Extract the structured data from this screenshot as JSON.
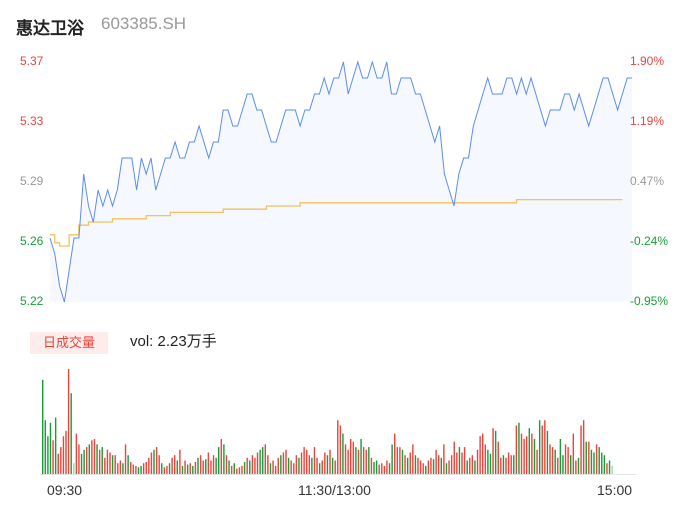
{
  "header": {
    "name": "惠达卫浴",
    "code": "603385.SH"
  },
  "colors": {
    "up": "#e8453c",
    "down": "#1a9c3a",
    "flat": "#999999",
    "price_line": "#5b8def",
    "avg_line": "#f5c15c"
  },
  "chart_data": {
    "type": "line",
    "price_axis": {
      "ticks": [
        "5.37",
        "5.33",
        "5.29",
        "5.26",
        "5.22"
      ],
      "range": [
        5.22,
        5.37
      ]
    },
    "pct_axis": {
      "ticks": [
        "1.90%",
        "1.19%",
        "0.47%",
        "-0.24%",
        "-0.95%"
      ]
    },
    "time_labels": [
      "09:30",
      "11:30/13:00",
      "15:00"
    ],
    "price_series": [
      5.26,
      5.25,
      5.23,
      5.22,
      5.24,
      5.26,
      5.26,
      5.3,
      5.28,
      5.27,
      5.29,
      5.28,
      5.29,
      5.28,
      5.29,
      5.31,
      5.31,
      5.31,
      5.29,
      5.31,
      5.3,
      5.31,
      5.29,
      5.3,
      5.31,
      5.31,
      5.32,
      5.31,
      5.31,
      5.32,
      5.32,
      5.33,
      5.32,
      5.31,
      5.32,
      5.32,
      5.34,
      5.34,
      5.33,
      5.33,
      5.34,
      5.35,
      5.35,
      5.34,
      5.34,
      5.33,
      5.32,
      5.32,
      5.33,
      5.34,
      5.34,
      5.34,
      5.33,
      5.34,
      5.34,
      5.35,
      5.35,
      5.36,
      5.35,
      5.36,
      5.36,
      5.37,
      5.35,
      5.36,
      5.37,
      5.36,
      5.36,
      5.37,
      5.36,
      5.36,
      5.37,
      5.35,
      5.35,
      5.36,
      5.36,
      5.36,
      5.35,
      5.35,
      5.34,
      5.33,
      5.32,
      5.33,
      5.3,
      5.29,
      5.28,
      5.3,
      5.31,
      5.31,
      5.33,
      5.34,
      5.35,
      5.36,
      5.35,
      5.35,
      5.35,
      5.36,
      5.36,
      5.35,
      5.36,
      5.35,
      5.36,
      5.35,
      5.34,
      5.33,
      5.34,
      5.34,
      5.34,
      5.35,
      5.35,
      5.34,
      5.35,
      5.34,
      5.33,
      5.34,
      5.35,
      5.36,
      5.36,
      5.35,
      5.34,
      5.35,
      5.36,
      5.36
    ],
    "avg_series": [
      5.262,
      5.257,
      5.255,
      5.255,
      5.262,
      5.262,
      5.268,
      5.268,
      5.27,
      5.27,
      5.27,
      5.27,
      5.27,
      5.272,
      5.272,
      5.272,
      5.272,
      5.272,
      5.272,
      5.272,
      5.274,
      5.274,
      5.274,
      5.274,
      5.274,
      5.276,
      5.276,
      5.276,
      5.276,
      5.276,
      5.276,
      5.276,
      5.276,
      5.276,
      5.276,
      5.276,
      5.278,
      5.278,
      5.278,
      5.278,
      5.278,
      5.278,
      5.278,
      5.278,
      5.278,
      5.28,
      5.28,
      5.28,
      5.28,
      5.28,
      5.28,
      5.28,
      5.282,
      5.282,
      5.282,
      5.282,
      5.282,
      5.282,
      5.282,
      5.282,
      5.282,
      5.282,
      5.282,
      5.282,
      5.282,
      5.282,
      5.282,
      5.282,
      5.282,
      5.282,
      5.282,
      5.282,
      5.282,
      5.282,
      5.282,
      5.282,
      5.282,
      5.282,
      5.282,
      5.282,
      5.282,
      5.282,
      5.282,
      5.282,
      5.282,
      5.282,
      5.282,
      5.282,
      5.282,
      5.282,
      5.282,
      5.282,
      5.282,
      5.282,
      5.282,
      5.282,
      5.282,
      5.284,
      5.284,
      5.284,
      5.284,
      5.284,
      5.284,
      5.284,
      5.284,
      5.284,
      5.284,
      5.284,
      5.284,
      5.284,
      5.284,
      5.284,
      5.284,
      5.284,
      5.284,
      5.284,
      5.284,
      5.284,
      5.284,
      5.284
    ],
    "volume": {
      "tag": "日成交量",
      "text": "vol: 2.23万手",
      "values": [
        70,
        40,
        28,
        38,
        25,
        42,
        15,
        20,
        28,
        32,
        78,
        60,
        8,
        30,
        22,
        15,
        18,
        20,
        22,
        25,
        26,
        22,
        18,
        20,
        12,
        18,
        16,
        14,
        14,
        8,
        10,
        8,
        22,
        14,
        9,
        7,
        6,
        5,
        6,
        8,
        9,
        12,
        16,
        18,
        20,
        14,
        8,
        5,
        6,
        8,
        12,
        14,
        10,
        18,
        6,
        10,
        7,
        8,
        6,
        9,
        12,
        14,
        10,
        11,
        16,
        10,
        14,
        12,
        20,
        26,
        22,
        14,
        10,
        6,
        8,
        4,
        5,
        6,
        9,
        12,
        10,
        14,
        12,
        16,
        18,
        20,
        22,
        14,
        8,
        10,
        6,
        12,
        14,
        16,
        18,
        12,
        10,
        8,
        14,
        12,
        16,
        20,
        18,
        14,
        12,
        20,
        12,
        8,
        10,
        16,
        14,
        18,
        12,
        10,
        40,
        36,
        30,
        22,
        18,
        26,
        24,
        20,
        18,
        26,
        20,
        18,
        20,
        12,
        9,
        10,
        7,
        8,
        6,
        10,
        8,
        22,
        30,
        20,
        20,
        18,
        14,
        12,
        16,
        22,
        14,
        12,
        10,
        8,
        6,
        10,
        12,
        11,
        18,
        14,
        12,
        22,
        8,
        10,
        14,
        24,
        16,
        20,
        16,
        20,
        10,
        12,
        14,
        10,
        18,
        28,
        30,
        22,
        18,
        15,
        34,
        32,
        24,
        12,
        14,
        12,
        16,
        14,
        14,
        36,
        38,
        30,
        26,
        28,
        34,
        30,
        26,
        18,
        40,
        36,
        40,
        32,
        22,
        20,
        18,
        12,
        26,
        14,
        22,
        20,
        14,
        30,
        10,
        12,
        36,
        40,
        24,
        24,
        18,
        16,
        22,
        20,
        16,
        14,
        8,
        10,
        6
      ],
      "colors": [
        "down",
        "down",
        "down",
        "down",
        "up",
        "down",
        "up",
        "up",
        "up",
        "up",
        "up",
        "down",
        "flat",
        "up",
        "up",
        "down",
        "down",
        "up",
        "down",
        "up",
        "up",
        "down",
        "up",
        "down",
        "up",
        "up",
        "up",
        "down",
        "up",
        "up",
        "up",
        "down",
        "up",
        "down",
        "up",
        "up",
        "up",
        "down",
        "down",
        "up",
        "up",
        "up",
        "up",
        "down",
        "up",
        "up",
        "down",
        "up",
        "up",
        "down",
        "up",
        "up",
        "down",
        "up",
        "down",
        "up",
        "down",
        "up",
        "down",
        "up",
        "down",
        "up",
        "up",
        "down",
        "up",
        "up",
        "up",
        "down",
        "down",
        "up",
        "down",
        "up",
        "down",
        "up",
        "down",
        "up",
        "up",
        "up",
        "down",
        "up",
        "down",
        "up",
        "up",
        "up",
        "down",
        "down",
        "up",
        "up",
        "down",
        "up",
        "up",
        "up",
        "down",
        "up",
        "up",
        "down",
        "up",
        "up",
        "up",
        "down",
        "up",
        "up",
        "up",
        "up",
        "down",
        "up",
        "up",
        "down",
        "up",
        "up",
        "down",
        "up",
        "down",
        "up",
        "up",
        "up",
        "down",
        "up",
        "up",
        "up",
        "up",
        "down",
        "up",
        "down",
        "up",
        "up",
        "down",
        "up",
        "down",
        "down",
        "up",
        "up",
        "up",
        "up",
        "down",
        "down",
        "up",
        "up",
        "up",
        "down",
        "up",
        "down",
        "up",
        "up",
        "down",
        "up",
        "up",
        "up",
        "down",
        "up",
        "up",
        "down",
        "up",
        "up",
        "down",
        "up",
        "down",
        "up",
        "up",
        "up",
        "up",
        "down",
        "up",
        "up",
        "down",
        "up",
        "up",
        "down",
        "up",
        "up",
        "up",
        "up",
        "down",
        "down",
        "up",
        "down",
        "up",
        "up",
        "down",
        "up",
        "up",
        "up",
        "down",
        "up",
        "down",
        "up",
        "up",
        "up",
        "down",
        "up",
        "down",
        "up",
        "down",
        "up",
        "up",
        "down",
        "up",
        "up",
        "down",
        "up",
        "down",
        "down",
        "up",
        "up",
        "down",
        "up",
        "up",
        "down",
        "up",
        "up",
        "down",
        "up",
        "down",
        "down",
        "up",
        "down",
        "down",
        "down",
        "up",
        "down",
        "flat"
      ]
    }
  }
}
